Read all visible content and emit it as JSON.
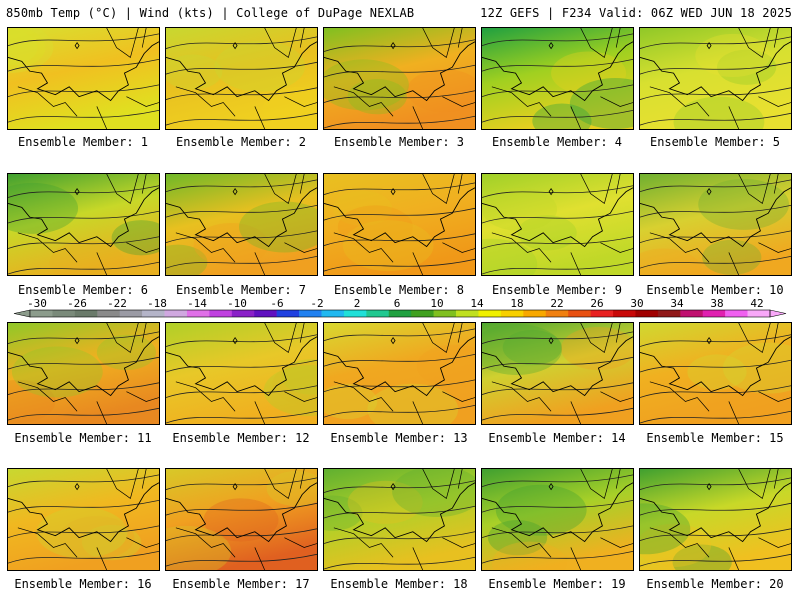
{
  "header": {
    "left": "850mb Temp (°C) | Wind (kts) | College of DuPage NEXLAB",
    "right": "12Z GEFS | F234 Valid: 06Z WED JUN 18 2025"
  },
  "members": [
    {
      "label": "Ensemble Member: 1"
    },
    {
      "label": "Ensemble Member: 2"
    },
    {
      "label": "Ensemble Member: 3"
    },
    {
      "label": "Ensemble Member: 4"
    },
    {
      "label": "Ensemble Member: 5"
    },
    {
      "label": "Ensemble Member: 6"
    },
    {
      "label": "Ensemble Member: 7"
    },
    {
      "label": "Ensemble Member: 8"
    },
    {
      "label": "Ensemble Member: 9"
    },
    {
      "label": "Ensemble Member: 10"
    },
    {
      "label": "Ensemble Member: 11"
    },
    {
      "label": "Ensemble Member: 12"
    },
    {
      "label": "Ensemble Member: 13"
    },
    {
      "label": "Ensemble Member: 14"
    },
    {
      "label": "Ensemble Member: 15"
    },
    {
      "label": "Ensemble Member: 16"
    },
    {
      "label": "Ensemble Member: 17"
    },
    {
      "label": "Ensemble Member: 18"
    },
    {
      "label": "Ensemble Member: 19"
    },
    {
      "label": "Ensemble Member: 20"
    }
  ],
  "colorbar": {
    "ticks": [
      "-30",
      "-26",
      "-22",
      "-18",
      "-14",
      "-10",
      "-6",
      "-2",
      "2",
      "6",
      "10",
      "14",
      "18",
      "22",
      "26",
      "30",
      "34",
      "38",
      "42"
    ],
    "colors": [
      "#8c9c8c",
      "#7a8a7a",
      "#6a7a6a",
      "#8a8a8a",
      "#9a9aa4",
      "#b4b4c8",
      "#d0a8e0",
      "#e070e8",
      "#c040e0",
      "#8a20c8",
      "#6010c0",
      "#2040e0",
      "#2080f0",
      "#20b8f0",
      "#20e0d8",
      "#20c890",
      "#20a040",
      "#40a020",
      "#80c020",
      "#c0e020",
      "#f0f000",
      "#f8d000",
      "#f8a800",
      "#f08010",
      "#e85010",
      "#e82020",
      "#c80808",
      "#a00000",
      "#901818",
      "#c01070",
      "#e020b0",
      "#f060f0",
      "#f8a8f8"
    ]
  }
}
